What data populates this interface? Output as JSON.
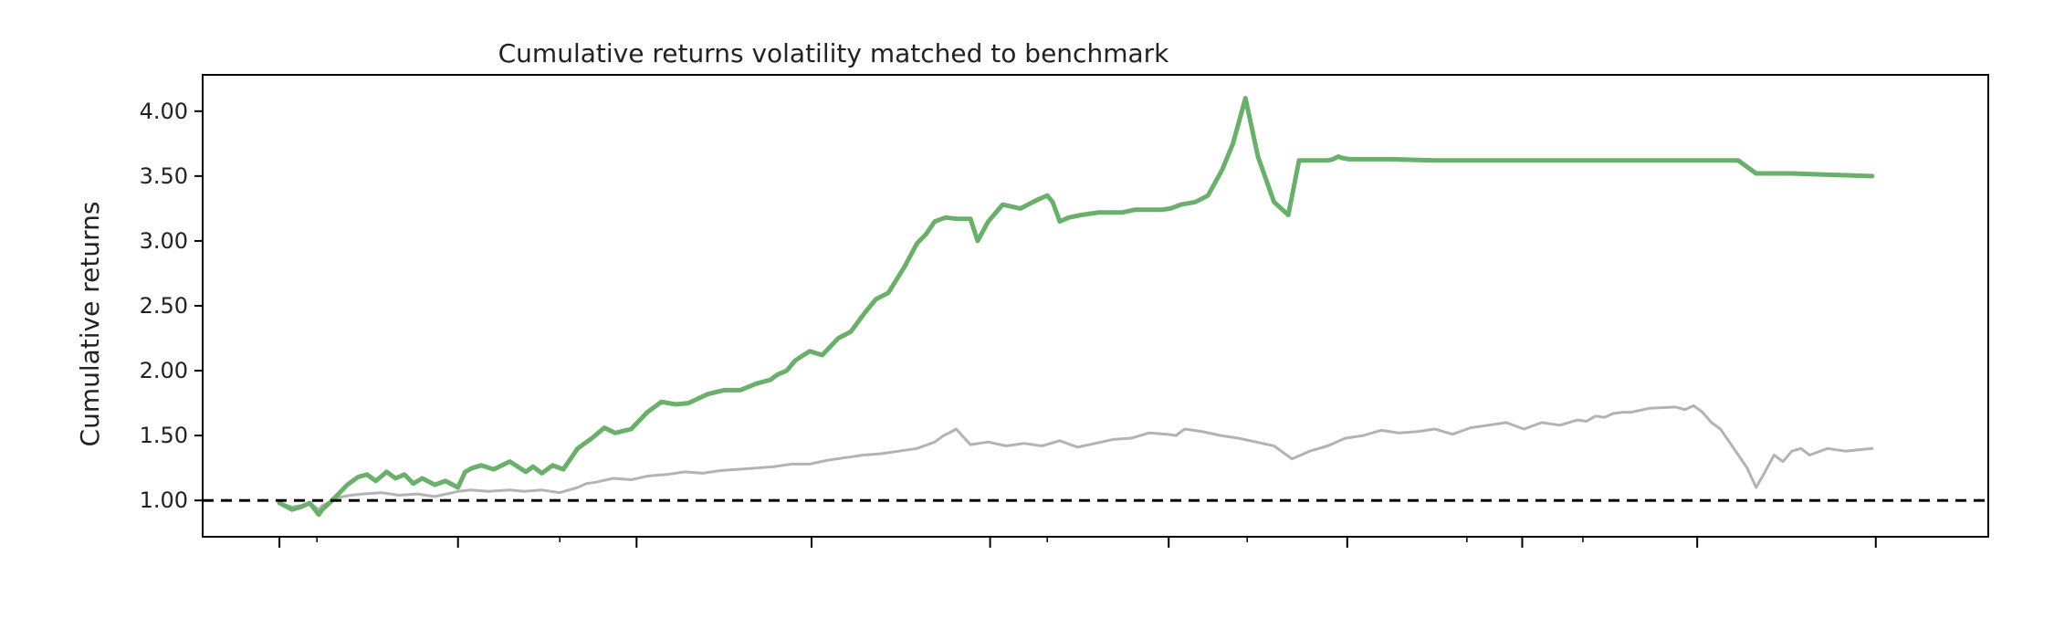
{
  "chart_data": {
    "type": "line",
    "title": "Cumulative returns volatility matched to benchmark",
    "xlabel": "",
    "ylabel": "Cumulative returns",
    "ylim": [
      0.72,
      4.28
    ],
    "xlim": [
      0,
      1000
    ],
    "yticks": [
      1.0,
      1.5,
      2.0,
      2.5,
      3.0,
      3.5,
      4.0
    ],
    "ytick_labels": [
      "1.00",
      "1.50",
      "2.00",
      "2.50",
      "3.00",
      "3.50",
      "4.00"
    ],
    "xticks_major": [
      43,
      143,
      243,
      341,
      441,
      541,
      641,
      739,
      837,
      937
    ],
    "xticks_minor": [
      64,
      200,
      473,
      585,
      708,
      773
    ],
    "tick_labels_x": [],
    "grid": false,
    "legend": "none",
    "reference_line": {
      "y": 1.0,
      "style": "dashed",
      "color": "#000000"
    },
    "series": [
      {
        "color": "#6aaf6a",
        "x": [
          43,
          50,
          55,
          60,
          65,
          67,
          71,
          76,
          81,
          87,
          92,
          97,
          103,
          108,
          113,
          118,
          123,
          130,
          136,
          143,
          147,
          151,
          156,
          163,
          172,
          181,
          185,
          190,
          196,
          202,
          210,
          218,
          225,
          231,
          240,
          249,
          257,
          265,
          272,
          283,
          292,
          301,
          310,
          318,
          322,
          327,
          332,
          340,
          347,
          356,
          363,
          371,
          377,
          384,
          393,
          400,
          405,
          410,
          416,
          423,
          430,
          434,
          440,
          448,
          458,
          468,
          473,
          476,
          480,
          485,
          492,
          502,
          515,
          522,
          528,
          532,
          537,
          542,
          548,
          556,
          563,
          571,
          577,
          584,
          591,
          600,
          608,
          614,
          620,
          625,
          628,
          630,
          633,
          636,
          638,
          642,
          646,
          652,
          665,
          690,
          720,
          750,
          760,
          780,
          800,
          830,
          860,
          870,
          880,
          890,
          910,
          935
        ],
        "values": [
          0.98,
          0.93,
          0.95,
          0.98,
          0.89,
          0.93,
          0.98,
          1.05,
          1.12,
          1.18,
          1.2,
          1.15,
          1.22,
          1.17,
          1.2,
          1.13,
          1.17,
          1.12,
          1.15,
          1.1,
          1.22,
          1.25,
          1.27,
          1.24,
          1.3,
          1.22,
          1.26,
          1.21,
          1.27,
          1.24,
          1.4,
          1.48,
          1.56,
          1.52,
          1.55,
          1.68,
          1.76,
          1.74,
          1.75,
          1.82,
          1.85,
          1.85,
          1.9,
          1.93,
          1.97,
          2.0,
          2.08,
          2.15,
          2.12,
          2.25,
          2.3,
          2.45,
          2.55,
          2.6,
          2.8,
          2.98,
          3.05,
          3.15,
          3.18,
          3.17,
          3.17,
          3.0,
          3.15,
          3.28,
          3.25,
          3.32,
          3.35,
          3.3,
          3.15,
          3.18,
          3.2,
          3.22,
          3.22,
          3.24,
          3.24,
          3.24,
          3.24,
          3.25,
          3.28,
          3.3,
          3.35,
          3.55,
          3.75,
          4.1,
          3.65,
          3.3,
          3.2,
          3.62,
          3.62,
          3.62,
          3.62,
          3.62,
          3.63,
          3.65,
          3.64,
          3.63,
          3.63,
          3.63,
          3.63,
          3.62,
          3.62,
          3.62,
          3.62,
          3.62,
          3.62,
          3.62,
          3.62,
          3.52,
          3.52,
          3.52,
          3.51,
          3.5
        ]
      },
      {
        "color": "#b3b3b3",
        "x": [
          43,
          50,
          55,
          60,
          65,
          67,
          70,
          75,
          83,
          90,
          100,
          110,
          120,
          130,
          140,
          143,
          150,
          160,
          172,
          180,
          190,
          200,
          210,
          215,
          220,
          230,
          240,
          250,
          260,
          270,
          280,
          290,
          300,
          310,
          320,
          330,
          340,
          350,
          360,
          370,
          380,
          390,
          400,
          410,
          415,
          418,
          422,
          430,
          440,
          450,
          460,
          470,
          480,
          490,
          500,
          510,
          520,
          530,
          540,
          545,
          550,
          560,
          570,
          580,
          590,
          600,
          610,
          620,
          630,
          640,
          650,
          660,
          670,
          680,
          690,
          700,
          710,
          720,
          730,
          740,
          750,
          760,
          770,
          775,
          780,
          785,
          790,
          795,
          800,
          810,
          825,
          830,
          835,
          840,
          845,
          850,
          855,
          860,
          865,
          870,
          875,
          880,
          885,
          890,
          895,
          900,
          910,
          920,
          935
        ],
        "values": [
          0.98,
          0.95,
          0.96,
          0.98,
          0.93,
          0.96,
          0.98,
          1.02,
          1.04,
          1.05,
          1.06,
          1.04,
          1.05,
          1.03,
          1.06,
          1.07,
          1.08,
          1.07,
          1.08,
          1.07,
          1.08,
          1.06,
          1.1,
          1.13,
          1.14,
          1.17,
          1.16,
          1.19,
          1.2,
          1.22,
          1.21,
          1.23,
          1.24,
          1.25,
          1.26,
          1.28,
          1.28,
          1.31,
          1.33,
          1.35,
          1.36,
          1.38,
          1.4,
          1.45,
          1.5,
          1.52,
          1.55,
          1.43,
          1.45,
          1.42,
          1.44,
          1.42,
          1.46,
          1.41,
          1.44,
          1.47,
          1.48,
          1.52,
          1.51,
          1.5,
          1.55,
          1.53,
          1.5,
          1.48,
          1.45,
          1.42,
          1.32,
          1.38,
          1.42,
          1.48,
          1.5,
          1.54,
          1.52,
          1.53,
          1.55,
          1.51,
          1.56,
          1.58,
          1.6,
          1.55,
          1.6,
          1.58,
          1.62,
          1.61,
          1.65,
          1.64,
          1.67,
          1.68,
          1.68,
          1.71,
          1.72,
          1.7,
          1.73,
          1.68,
          1.6,
          1.55,
          1.45,
          1.35,
          1.25,
          1.1,
          1.22,
          1.35,
          1.3,
          1.38,
          1.4,
          1.35,
          1.4,
          1.38,
          1.4
        ]
      }
    ]
  }
}
